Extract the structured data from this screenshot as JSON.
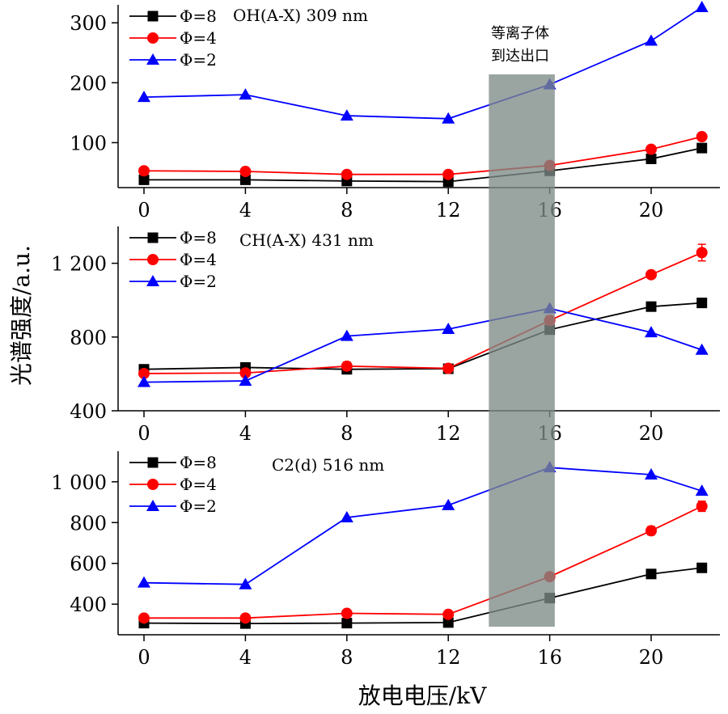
{
  "figure": {
    "xlabel": "放电电压/kV",
    "ylabel": "光谱强度/a.u.",
    "highlight_band": {
      "x_range": [
        13.6,
        16.2
      ],
      "label_lines": [
        "等离子体",
        "到达出口"
      ],
      "color": "#7d8a86"
    }
  },
  "chart_data": [
    {
      "type": "line",
      "title": "",
      "annotation": "OH(A-X) 309 nm",
      "xlabel": "",
      "ylabel": "",
      "x_ticks": [
        0,
        4,
        8,
        12,
        16,
        20
      ],
      "x_tick_labels": [
        "0",
        "4",
        "8",
        "12",
        "16",
        "20"
      ],
      "y_ticks": [
        100,
        200,
        300
      ],
      "y_tick_labels": [
        "100",
        "200",
        "300"
      ],
      "xlim": [
        -1,
        23
      ],
      "ylim": [
        25,
        330
      ],
      "x": [
        0,
        4,
        8,
        12,
        16,
        20,
        22
      ],
      "series": [
        {
          "name": "Φ=8",
          "color": "#000000",
          "marker": "square",
          "values": [
            38,
            38,
            36,
            35,
            53,
            73,
            91
          ]
        },
        {
          "name": "Φ=4",
          "color": "#ff0000",
          "marker": "circle",
          "values": [
            53,
            52,
            47,
            47,
            62,
            89,
            110
          ]
        },
        {
          "name": "Φ=2",
          "color": "#0000ff",
          "marker": "triangle",
          "values": [
            176,
            180,
            145,
            140,
            197,
            270,
            326
          ]
        }
      ],
      "legend_position": "top-left"
    },
    {
      "type": "line",
      "title": "",
      "annotation": "CH(A-X) 431 nm",
      "xlabel": "",
      "ylabel": "",
      "x_ticks": [
        0,
        4,
        8,
        12,
        16,
        20
      ],
      "x_tick_labels": [
        "0",
        "4",
        "8",
        "12",
        "16",
        "20"
      ],
      "y_ticks": [
        400,
        800,
        1200
      ],
      "y_tick_labels": [
        "400",
        "800",
        "1 200"
      ],
      "xlim": [
        -1,
        23
      ],
      "ylim": [
        400,
        1400
      ],
      "x": [
        0,
        4,
        8,
        12,
        16,
        20,
        22
      ],
      "series": [
        {
          "name": "Φ=8",
          "color": "#000000",
          "marker": "square",
          "values": [
            625,
            635,
            625,
            628,
            840,
            965,
            985
          ],
          "errors": [
            0,
            0,
            0,
            0,
            0,
            0,
            0
          ]
        },
        {
          "name": "Φ=4",
          "color": "#ff0000",
          "marker": "circle",
          "values": [
            602,
            605,
            642,
            630,
            890,
            1138,
            1258
          ],
          "errors": [
            0,
            0,
            22,
            0,
            25,
            0,
            45
          ]
        },
        {
          "name": "Φ=2",
          "color": "#0000ff",
          "marker": "triangle",
          "values": [
            555,
            562,
            805,
            843,
            955,
            825,
            730
          ],
          "errors": [
            0,
            0,
            0,
            0,
            0,
            0,
            0
          ]
        }
      ],
      "legend_position": "top-left"
    },
    {
      "type": "line",
      "title": "",
      "annotation": "C2(d) 516 nm",
      "xlabel": "",
      "ylabel": "",
      "x_ticks": [
        0,
        4,
        8,
        12,
        16,
        20
      ],
      "x_tick_labels": [
        "0",
        "4",
        "8",
        "12",
        "16",
        "20"
      ],
      "y_ticks": [
        400,
        600,
        800,
        1000
      ],
      "y_tick_labels": [
        "400",
        "600",
        "800",
        "1 000"
      ],
      "xlim": [
        -1,
        23
      ],
      "ylim": [
        250,
        1150
      ],
      "x": [
        0,
        4,
        8,
        12,
        16,
        20,
        22
      ],
      "series": [
        {
          "name": "Φ=8",
          "color": "#000000",
          "marker": "square",
          "values": [
            307,
            305,
            307,
            310,
            430,
            548,
            578
          ],
          "errors": [
            0,
            0,
            0,
            0,
            0,
            0,
            0
          ]
        },
        {
          "name": "Φ=4",
          "color": "#ff0000",
          "marker": "circle",
          "values": [
            332,
            332,
            355,
            350,
            535,
            760,
            880
          ],
          "errors": [
            0,
            0,
            0,
            0,
            0,
            20,
            25
          ]
        },
        {
          "name": "Φ=2",
          "color": "#0000ff",
          "marker": "triangle",
          "values": [
            505,
            497,
            825,
            885,
            1070,
            1035,
            955
          ],
          "errors": [
            0,
            0,
            0,
            0,
            0,
            0,
            0
          ]
        }
      ],
      "legend_position": "top-left"
    }
  ]
}
